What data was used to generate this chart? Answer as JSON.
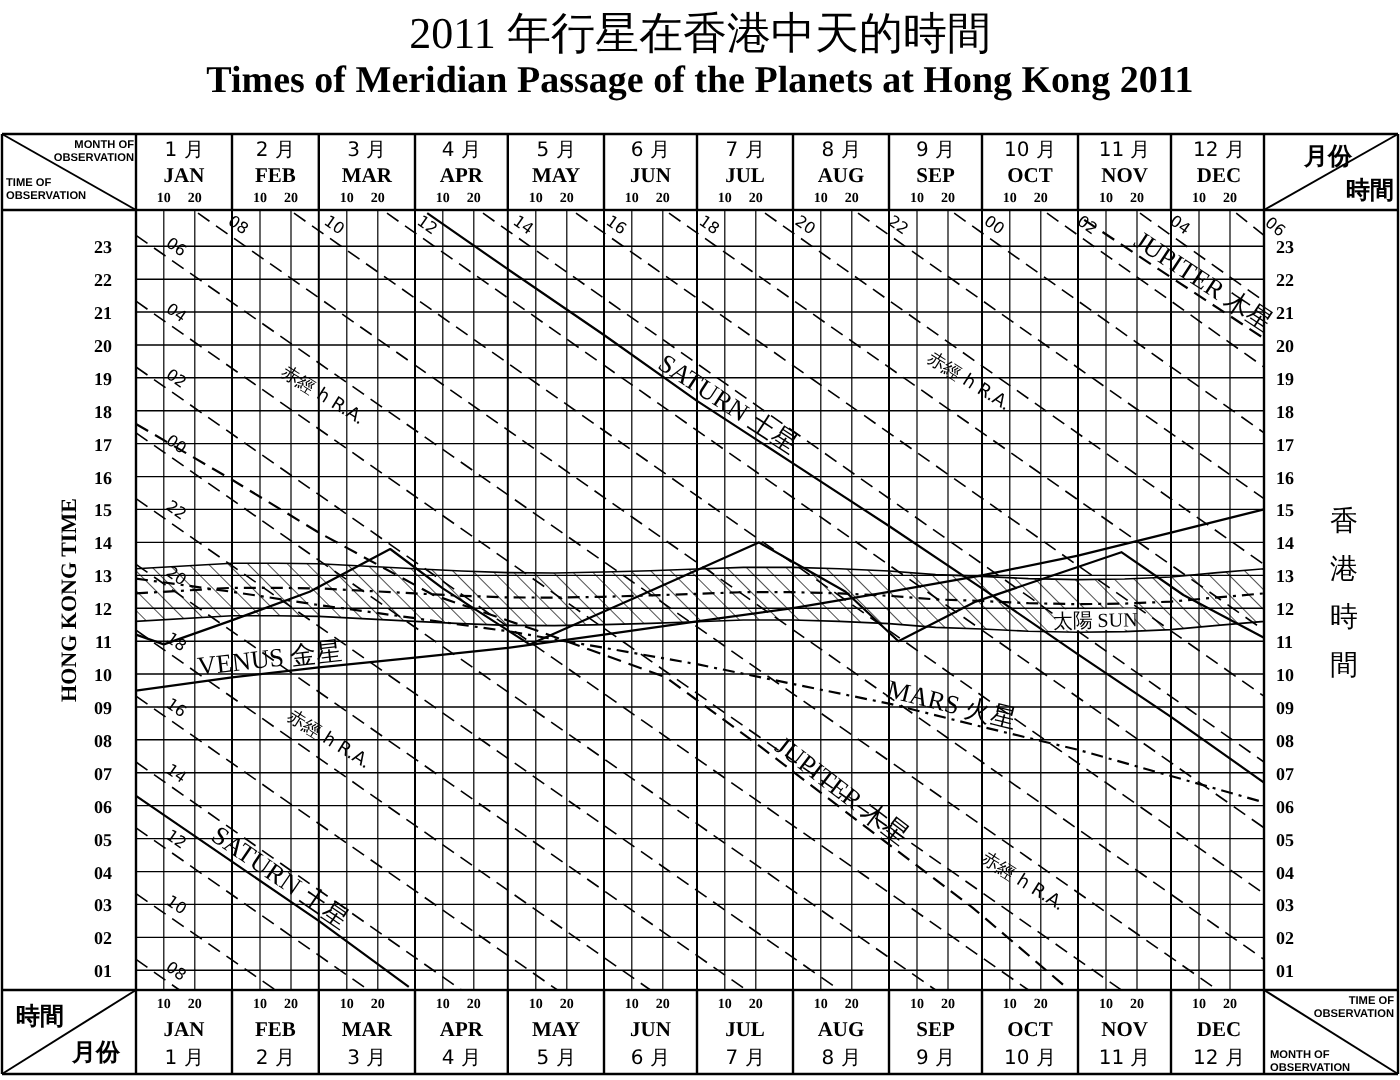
{
  "chart_data": {
    "type": "line",
    "title": "2011 年行星在香港中天的時間",
    "subtitle": "Times of Meridian Passage of the Planets at Hong Kong 2011",
    "ylabel": "HONG KONG TIME",
    "y2label": "香港時間",
    "xlim": [
      "--01-01",
      "--12-31"
    ],
    "x2lim": [
      "--01-01",
      "--12-31"
    ],
    "xticks": [
      {
        "value": "--01-10",
        "label": "10"
      },
      {
        "value": "--01-20",
        "label": "20"
      },
      {
        "value": "--02-01",
        "label": null
      },
      {
        "value": "--02-10",
        "label": "10"
      },
      {
        "value": "--02-20",
        "label": "20"
      },
      {
        "value": "--03-01",
        "label": null
      },
      {
        "value": "--03-10",
        "label": "10"
      },
      {
        "value": "--03-20",
        "label": "20"
      },
      {
        "value": "--04-01",
        "label": null
      },
      {
        "value": "--04-10",
        "label": "10"
      },
      {
        "value": "--04-20",
        "label": "20"
      },
      {
        "value": "--05-01",
        "label": null
      },
      {
        "value": "--05-10",
        "label": "10"
      },
      {
        "value": "--05-20",
        "label": "20"
      },
      {
        "value": "--06-01",
        "label": null
      },
      {
        "value": "--06-10",
        "label": "10"
      },
      {
        "value": "--06-20",
        "label": "20"
      },
      {
        "value": "--07-01",
        "label": null
      },
      {
        "value": "--07-10",
        "label": "10"
      },
      {
        "value": "--07-20",
        "label": "20"
      },
      {
        "value": "--08-01",
        "label": null
      },
      {
        "value": "--08-10",
        "label": "10"
      },
      {
        "value": "--08-20",
        "label": "20"
      },
      {
        "value": "--09-01",
        "label": null
      },
      {
        "value": "--09-10",
        "label": "10"
      },
      {
        "value": "--09-20",
        "label": "20"
      },
      {
        "value": "--10-01",
        "label": null
      },
      {
        "value": "--10-10",
        "label": "10"
      },
      {
        "value": "--10-20",
        "label": "20"
      },
      {
        "value": "--11-01",
        "label": null
      },
      {
        "value": "--11-10",
        "label": "10"
      },
      {
        "value": "--11-20",
        "label": "20"
      },
      {
        "value": "--12-01",
        "label": null
      },
      {
        "value": "--12-10",
        "label": "10"
      },
      {
        "value": "--12-20",
        "label": "20"
      }
    ],
    "x2ticks": [
      {
        "value": "--01-10",
        "label": "10"
      },
      {
        "value": "--01-20",
        "label": "20"
      },
      {
        "value": "--02-01",
        "label": null
      },
      {
        "value": "--02-10",
        "label": "10"
      },
      {
        "value": "--02-20",
        "label": "20"
      },
      {
        "value": "--03-01",
        "label": null
      },
      {
        "value": "--03-10",
        "label": "10"
      },
      {
        "value": "--03-20",
        "label": "20"
      },
      {
        "value": "--04-01",
        "label": null
      },
      {
        "value": "--04-10",
        "label": "10"
      },
      {
        "value": "--04-20",
        "label": "20"
      },
      {
        "value": "--05-01",
        "label": null
      },
      {
        "value": "--05-10",
        "label": "10"
      },
      {
        "value": "--05-20",
        "label": "20"
      },
      {
        "value": "--06-01",
        "label": null
      },
      {
        "value": "--06-10",
        "label": "10"
      },
      {
        "value": "--06-20",
        "label": "20"
      },
      {
        "value": "--07-01",
        "label": null
      },
      {
        "value": "--07-10",
        "label": "10"
      },
      {
        "value": "--07-20",
        "label": "20"
      },
      {
        "value": "--08-01",
        "label": null
      },
      {
        "value": "--08-10",
        "label": "10"
      },
      {
        "value": "--08-20",
        "label": "20"
      },
      {
        "value": "--09-01",
        "label": null
      },
      {
        "value": "--09-10",
        "label": "10"
      },
      {
        "value": "--09-20",
        "label": "20"
      },
      {
        "value": "--10-01",
        "label": null
      },
      {
        "value": "--10-10",
        "label": "10"
      },
      {
        "value": "--10-20",
        "label": "20"
      },
      {
        "value": "--11-01",
        "label": null
      },
      {
        "value": "--11-10",
        "label": "10"
      },
      {
        "value": "--11-20",
        "label": "20"
      },
      {
        "value": "--12-01",
        "label": null
      },
      {
        "value": "--12-10",
        "label": "10"
      },
      {
        "value": "--12-20",
        "label": "20"
      }
    ],
    "ylim": [
      0.4,
      24.1
    ],
    "y2lim": [
      0.4,
      24.1
    ],
    "yticks": [
      {
        "value": 1,
        "label": "01"
      },
      {
        "value": 2,
        "label": "02"
      },
      {
        "value": 3,
        "label": "03"
      },
      {
        "value": 4,
        "label": "04"
      },
      {
        "value": 5,
        "label": "05"
      },
      {
        "value": 6,
        "label": "06"
      },
      {
        "value": 7,
        "label": "07"
      },
      {
        "value": 8,
        "label": "08"
      },
      {
        "value": 9,
        "label": "09"
      },
      10,
      11,
      12,
      13,
      14,
      15,
      16,
      17,
      18,
      19,
      20,
      21,
      22,
      23
    ],
    "y2ticks": [
      {
        "value": 1,
        "label": "01"
      },
      {
        "value": 2,
        "label": "02"
      },
      {
        "value": 3,
        "label": "03"
      },
      {
        "value": 4,
        "label": "04"
      },
      {
        "value": 5,
        "label": "05"
      },
      {
        "value": 6,
        "label": "06"
      },
      {
        "value": 7,
        "label": "07"
      },
      {
        "value": 8,
        "label": "08"
      },
      {
        "value": 9,
        "label": "09"
      },
      10,
      11,
      12,
      13,
      14,
      15,
      16,
      17,
      18,
      19,
      20,
      21,
      22,
      23
    ],
    "grid": true,
    "annotations": [
      "MONTH OF OBSERVATION",
      "TIME OF OBSERVATION",
      "月份",
      "時間",
      "赤經 h R.A.",
      "赤經 h R.A.",
      "赤經 h R.A.",
      "赤經 h R.A.",
      "JAN",
      "FEB",
      "MAR",
      "APR",
      "MAY",
      "JUN",
      "JUL",
      "AUG",
      "SEP",
      "OCT",
      "NOV",
      "DEC",
      "1 月",
      "2 月",
      "3 月",
      "4 月",
      "5 月",
      "6 月",
      "7 月",
      "8 月",
      "9 月",
      "10 月",
      "11 月",
      "12 月"
    ],
    "series": [
      {
        "name": "太陽 SUN",
        "color": "#000000",
        "line_style": "dotted",
        "x": [
          "--01-01",
          "--02-01",
          "--02-15",
          "--03-01",
          "--04-01",
          "--04-16",
          "--05-01",
          "--05-16",
          "--06-01",
          "--06-16",
          "--07-01",
          "--07-16",
          "--08-01",
          "--08-16",
          "--09-01",
          "--09-16",
          "--10-01",
          "--10-16",
          "--11-01",
          "--11-16",
          "--12-01",
          "--12-16",
          "--12-31"
        ],
        "values": [
          12.45,
          12.62,
          12.62,
          12.6,
          12.45,
          12.38,
          12.33,
          12.32,
          12.35,
          12.39,
          12.44,
          12.49,
          12.49,
          12.45,
          12.38,
          12.27,
          12.22,
          12.15,
          12.12,
          12.14,
          12.2,
          12.33,
          12.45
        ],
        "lower": [
          11.6,
          11.77,
          11.77,
          11.75,
          11.6,
          11.53,
          11.48,
          11.47,
          11.5,
          11.54,
          11.59,
          11.64,
          11.64,
          11.6,
          11.53,
          11.42,
          11.37,
          11.3,
          11.27,
          11.29,
          11.35,
          11.48,
          11.6
        ],
        "upper": [
          13.2,
          13.37,
          13.37,
          13.35,
          13.2,
          13.13,
          13.08,
          13.07,
          13.1,
          13.14,
          13.19,
          13.24,
          13.24,
          13.2,
          13.13,
          13.02,
          12.97,
          12.9,
          12.87,
          12.89,
          12.95,
          13.08,
          13.2
        ]
      },
      {
        "color": "#000000",
        "line_style": "solid",
        "x": [
          "--01-01",
          "--01-10",
          "--01-31",
          "--02-26",
          "--03-24",
          "--04-10",
          "--05-08",
          "--06-13",
          "--07-21",
          "--08-18",
          "--09-04",
          "--09-29",
          "--11-15",
          "--12-05",
          "--12-31"
        ],
        "values": [
          11.2,
          10.9,
          11.6,
          12.5,
          13.8,
          12.6,
          10.9,
          12.4,
          14.0,
          12.5,
          11.0,
          12.2,
          13.7,
          12.4,
          11.1
        ]
      },
      {
        "name": "VENUS 金星",
        "color": "#000000",
        "line_style": "solid",
        "x": [
          "--01-01",
          "--02-01",
          "--03-01",
          "--04-01",
          "--05-01",
          "--06-01",
          "--07-01",
          "--08-01",
          "--09-01",
          "--10-01",
          "--11-01",
          "--12-01",
          "--12-31"
        ],
        "values": [
          9.5,
          9.9,
          10.2,
          10.5,
          10.8,
          11.2,
          11.6,
          12.0,
          12.5,
          13.0,
          13.6,
          14.3,
          15.0
        ]
      },
      {
        "name": "MARS 火星",
        "color": "#000000",
        "line_style": "dotted",
        "x": [
          "--01-01",
          "--02-01",
          "--03-01",
          "--04-01",
          "--05-01",
          "--06-01",
          "--07-01",
          "--08-01",
          "--09-01",
          "--10-01",
          "--11-01",
          "--12-01",
          "--12-31"
        ],
        "values": [
          12.9,
          12.5,
          12.1,
          11.7,
          11.3,
          10.8,
          10.3,
          9.7,
          9.1,
          8.4,
          7.7,
          6.9,
          6.1
        ]
      },
      {
        "name": "JUPITER 木星",
        "color": "#000000",
        "line_style": "dashed",
        "x": [
          "--01-01",
          "--02-01",
          "--03-01",
          "--04-07",
          "--05-11",
          "--06-21",
          "--07-20",
          "--08-21",
          "--09-28",
          "--10-28",
          "--10-31",
          "--11-03",
          "--11-27",
          "--12-31"
        ],
        "values": [
          17.6,
          15.9,
          14.3,
          12.4,
          11.3,
          9.9,
          7.9,
          5.6,
          2.9,
          0.5,
          null,
          23.8,
          22.3,
          20.2
        ]
      },
      {
        "name": "SATURN 土星",
        "color": "#000000",
        "line_style": "solid",
        "x": [
          "--01-01",
          "--02-01",
          "--03-01",
          "--03-30",
          "--04-02",
          "--04-05",
          "--05-01",
          "--06-01",
          "--07-01",
          "--08-01",
          "--09-01",
          "--10-01",
          "--11-01",
          "--12-01",
          "--12-31"
        ],
        "values": [
          6.3,
          4.3,
          2.5,
          0.5,
          null,
          24.0,
          22.3,
          20.3,
          18.3,
          16.4,
          14.5,
          12.6,
          10.6,
          8.7,
          6.7
        ]
      },
      {
        "name": "00",
        "color": "#000000",
        "line_style": "dashed",
        "x": [
          "--01-01",
          "--09-16",
          "--09-18",
          "--09-22",
          "--12-31"
        ],
        "values": [
          17.33,
          0.4,
          null,
          24,
          17.33
        ]
      },
      {
        "name": "02",
        "color": "#000000",
        "line_style": "dashed",
        "x": [
          "--01-01",
          "--10-16",
          "--10-19",
          "--10-22",
          "--12-31"
        ],
        "values": [
          19.33,
          0.4,
          null,
          24,
          19.33
        ]
      },
      {
        "name": "04",
        "color": "#000000",
        "line_style": "dashed",
        "x": [
          "--01-01",
          "--11-15",
          "--11-18",
          "--11-21",
          "--12-31"
        ],
        "values": [
          21.33,
          0.4,
          null,
          24,
          21.33
        ]
      },
      {
        "name": "06",
        "color": "#000000",
        "line_style": "dashed",
        "x": [
          "--01-01",
          "--12-16",
          "--12-18",
          "--12-22",
          "--12-31"
        ],
        "values": [
          23.33,
          0.4,
          null,
          24,
          23.33
        ]
      },
      {
        "name": "08",
        "color": "#000000",
        "line_style": "dashed",
        "x": [
          "--01-01",
          "--01-15",
          "--01-18",
          "--01-21",
          "--12-31"
        ],
        "values": [
          1.33,
          0.4,
          null,
          24,
          1.33
        ]
      },
      {
        "name": "10",
        "color": "#000000",
        "line_style": "dashed",
        "x": [
          "--01-01",
          "--02-15",
          "--02-17",
          "--02-21",
          "--12-31"
        ],
        "values": [
          3.33,
          0.4,
          null,
          24,
          3.33
        ]
      },
      {
        "name": "12",
        "color": "#000000",
        "line_style": "dashed",
        "x": [
          "--01-01",
          "--03-17",
          "--03-20",
          "--03-23",
          "--12-31"
        ],
        "values": [
          5.33,
          0.4,
          null,
          24,
          5.33
        ]
      },
      {
        "name": "14",
        "color": "#000000",
        "line_style": "dashed",
        "x": [
          "--01-01",
          "--04-16",
          "--04-19",
          "--04-23",
          "--12-31"
        ],
        "values": [
          7.33,
          0.4,
          null,
          24,
          7.33
        ]
      },
      {
        "name": "16",
        "color": "#000000",
        "line_style": "dashed",
        "x": [
          "--01-01",
          "--05-17",
          "--05-20",
          "--05-23",
          "--12-31"
        ],
        "values": [
          9.33,
          0.4,
          null,
          24,
          9.33
        ]
      },
      {
        "name": "18",
        "color": "#000000",
        "line_style": "dashed",
        "x": [
          "--01-01",
          "--06-16",
          "--06-19",
          "--06-22",
          "--12-31"
        ],
        "values": [
          11.33,
          0.4,
          null,
          24,
          11.33
        ]
      },
      {
        "name": "20",
        "color": "#000000",
        "line_style": "dashed",
        "x": [
          "--01-01",
          "--07-17",
          "--07-19",
          "--07-23",
          "--12-31"
        ],
        "values": [
          13.33,
          0.4,
          null,
          24,
          13.33
        ]
      },
      {
        "name": "22",
        "color": "#000000",
        "line_style": "dashed",
        "x": [
          "--01-01",
          "--08-16",
          "--08-19",
          "--08-22",
          "--12-31"
        ],
        "values": [
          15.33,
          0.4,
          null,
          24,
          15.33
        ]
      }
    ]
  }
}
